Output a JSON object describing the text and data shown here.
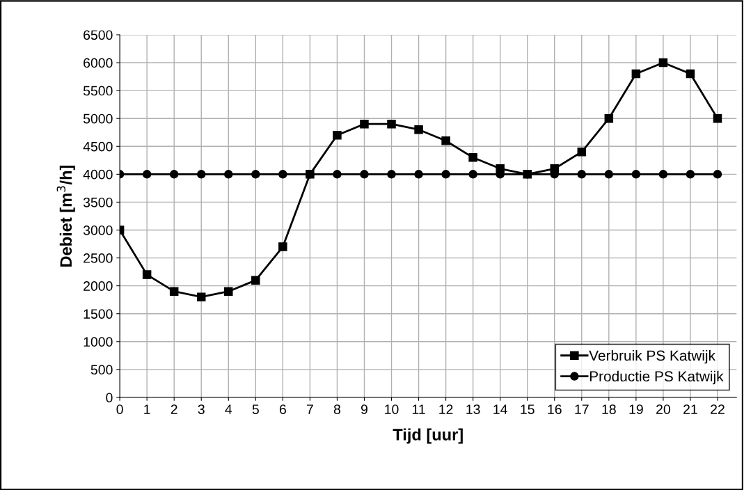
{
  "chart_data": {
    "type": "line",
    "xlabel": "Tijd [uur]",
    "ylabel": "Debiet [m$^{3}$/h]",
    "x": [
      0,
      1,
      2,
      3,
      4,
      5,
      6,
      7,
      8,
      9,
      10,
      11,
      12,
      13,
      14,
      15,
      16,
      17,
      18,
      19,
      20,
      21,
      22
    ],
    "series": [
      {
        "name": "Verbruik PS Katwijk",
        "color": "#000000",
        "marker": "square",
        "values": [
          3000,
          2200,
          1900,
          1800,
          1900,
          2100,
          2700,
          4000,
          4700,
          4900,
          4900,
          4800,
          4600,
          4300,
          4100,
          4000,
          4100,
          4400,
          5000,
          5800,
          6000,
          5800,
          5000
        ]
      },
      {
        "name": "Productie PS Katwijk",
        "color": "#000000",
        "marker": "circle",
        "values": [
          4000,
          4000,
          4000,
          4000,
          4000,
          4000,
          4000,
          4000,
          4000,
          4000,
          4000,
          4000,
          4000,
          4000,
          4000,
          4000,
          4000,
          4000,
          4000,
          4000,
          4000,
          4000,
          4000
        ]
      }
    ],
    "xlim": [
      0,
      22.7
    ],
    "xticks": [
      0,
      1,
      2,
      3,
      4,
      5,
      6,
      7,
      8,
      9,
      10,
      11,
      12,
      13,
      14,
      15,
      16,
      17,
      18,
      19,
      20,
      21,
      22
    ],
    "ylim": [
      0,
      6500
    ],
    "yticks": [
      0,
      500,
      1000,
      1500,
      2000,
      2500,
      3000,
      3500,
      4000,
      4500,
      5000,
      5500,
      6000,
      6500
    ],
    "grid": true,
    "legend": "bottom right",
    "line_style": "solid"
  }
}
